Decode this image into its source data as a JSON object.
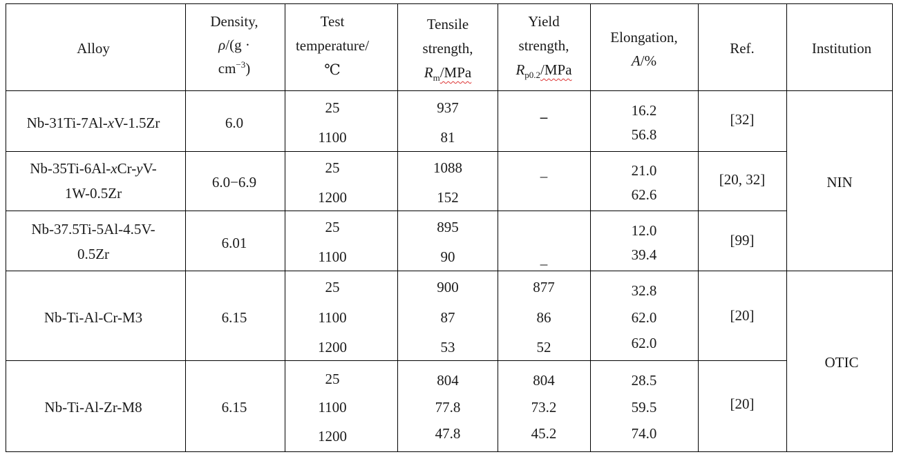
{
  "table": {
    "headers": {
      "alloy": "Alloy",
      "density": [
        "Density,",
        "ρ",
        "/(g ·",
        "cm",
        "−3",
        ")"
      ],
      "test_temperature": [
        "Test",
        "temperature/",
        "℃"
      ],
      "tensile": [
        "Tensile",
        "strength,",
        "R",
        "m",
        "/MPa"
      ],
      "yield": [
        "Yield",
        "strength,",
        "R",
        "p0.2",
        "/MPa"
      ],
      "elongation": [
        "Elongation,",
        "A",
        "/%"
      ],
      "ref": "Ref.",
      "institution": "Institution"
    },
    "rows": [
      {
        "alloy": "Nb-31Ti-7Al-xV-1.5Zr",
        "density": "6.0",
        "temperatures": [
          "25",
          "1100"
        ],
        "tensile": [
          "937",
          "81"
        ],
        "yield": [
          "–"
        ],
        "elongation": [
          "16.2",
          "56.8"
        ],
        "ref": "[32]"
      },
      {
        "alloy": "Nb-35Ti-6Al-xCr-yV-1W-0.5Zr",
        "alloy_lines": [
          "Nb-35Ti-6Al-",
          "x",
          "Cr-",
          "y",
          "V-",
          "1W-0.5Zr"
        ],
        "density": "6.0−6.9",
        "temperatures": [
          "25",
          "1200"
        ],
        "tensile": [
          "1088",
          "152"
        ],
        "yield": [
          "–"
        ],
        "elongation": [
          "21.0",
          "62.6"
        ],
        "ref": "[20, 32]"
      },
      {
        "alloy": "Nb-37.5Ti-5Al-4.5V-0.5Zr",
        "alloy_lines": [
          "Nb-37.5Ti-5Al-4.5V-",
          "0.5Zr"
        ],
        "density": "6.01",
        "temperatures": [
          "25",
          "1100"
        ],
        "tensile": [
          "895",
          "90"
        ],
        "yield": [
          "_"
        ],
        "elongation": [
          "12.0",
          "39.4"
        ],
        "ref": "[99]"
      },
      {
        "alloy": "Nb-Ti-Al-Cr-M3",
        "density": "6.15",
        "temperatures": [
          "25",
          "1100",
          "1200"
        ],
        "tensile": [
          "900",
          "87",
          "53"
        ],
        "yield": [
          "877",
          "86",
          "52"
        ],
        "elongation": [
          "32.8",
          "62.0",
          "62.0"
        ],
        "ref": "[20]"
      },
      {
        "alloy": "Nb-Ti-Al-Zr-M8",
        "density": "6.15",
        "temperatures": [
          "25",
          "1100",
          "1200"
        ],
        "tensile": [
          "804",
          "77.8",
          "47.8"
        ],
        "yield": [
          "804",
          "73.2",
          "45.2"
        ],
        "elongation": [
          "28.5",
          "59.5",
          "74.0"
        ],
        "ref": "[20]"
      }
    ],
    "institutions": [
      "NIN",
      "OTIC"
    ]
  }
}
